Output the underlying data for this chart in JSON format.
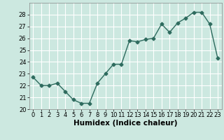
{
  "x": [
    0,
    1,
    2,
    3,
    4,
    5,
    6,
    7,
    8,
    9,
    10,
    11,
    12,
    13,
    14,
    15,
    16,
    17,
    18,
    19,
    20,
    21,
    22,
    23
  ],
  "y": [
    22.7,
    22.0,
    22.0,
    22.2,
    21.5,
    20.8,
    20.5,
    20.5,
    22.2,
    23.0,
    23.8,
    23.8,
    25.8,
    25.7,
    25.9,
    26.0,
    27.2,
    26.5,
    27.3,
    27.7,
    28.2,
    28.2,
    27.2,
    24.3
  ],
  "line_color": "#2e6b5e",
  "marker": "D",
  "marker_size": 2.5,
  "bg_color": "#cce8e0",
  "grid_color": "#ffffff",
  "xlabel": "Humidex (Indice chaleur)",
  "ylim": [
    20,
    29
  ],
  "xlim": [
    -0.5,
    23.5
  ],
  "yticks": [
    20,
    21,
    22,
    23,
    24,
    25,
    26,
    27,
    28
  ],
  "xticks": [
    0,
    1,
    2,
    3,
    4,
    5,
    6,
    7,
    8,
    9,
    10,
    11,
    12,
    13,
    14,
    15,
    16,
    17,
    18,
    19,
    20,
    21,
    22,
    23
  ],
  "tick_fontsize": 6,
  "xlabel_fontsize": 7.5
}
